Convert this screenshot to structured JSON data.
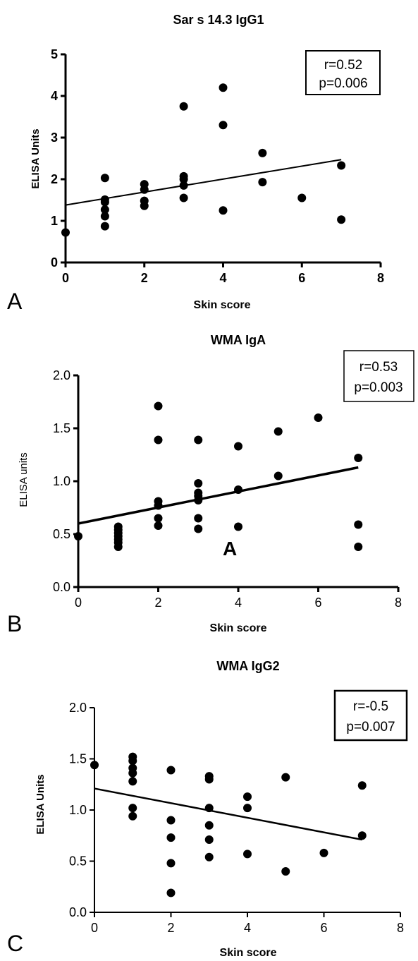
{
  "colors": {
    "marks": "#000000",
    "background": "#ffffff"
  },
  "chart_data": [
    {
      "type": "scatter",
      "panel_label": "A",
      "title": "Sar s 14.3 IgG1",
      "xlabel": "Skin score",
      "ylabel": "ELISA Units",
      "xlim": [
        0,
        8
      ],
      "ylim": [
        0,
        5
      ],
      "xticks": [
        "0",
        "2",
        "4",
        "6",
        "8"
      ],
      "yticks": [
        "0",
        "1",
        "2",
        "3",
        "4",
        "5"
      ],
      "stats": [
        "r=0.52",
        "p=0.006"
      ],
      "fit_line": {
        "x": [
          0,
          7
        ],
        "y": [
          1.38,
          2.47
        ]
      },
      "points": [
        {
          "x": 0,
          "y": 0.72
        },
        {
          "x": 1,
          "y": 2.03
        },
        {
          "x": 1,
          "y": 1.51
        },
        {
          "x": 1,
          "y": 1.45
        },
        {
          "x": 1,
          "y": 1.27
        },
        {
          "x": 1,
          "y": 1.11
        },
        {
          "x": 1,
          "y": 0.87
        },
        {
          "x": 2,
          "y": 1.88
        },
        {
          "x": 2,
          "y": 1.75
        },
        {
          "x": 2,
          "y": 1.48
        },
        {
          "x": 2,
          "y": 1.36
        },
        {
          "x": 3,
          "y": 3.75
        },
        {
          "x": 3,
          "y": 2.07
        },
        {
          "x": 3,
          "y": 2.0
        },
        {
          "x": 3,
          "y": 1.85
        },
        {
          "x": 3,
          "y": 1.55
        },
        {
          "x": 4,
          "y": 4.2
        },
        {
          "x": 4,
          "y": 3.3
        },
        {
          "x": 4,
          "y": 1.25
        },
        {
          "x": 5,
          "y": 2.63
        },
        {
          "x": 5,
          "y": 1.93
        },
        {
          "x": 6,
          "y": 1.55
        },
        {
          "x": 7,
          "y": 2.33
        },
        {
          "x": 7,
          "y": 1.03
        }
      ]
    },
    {
      "type": "scatter",
      "panel_label": "B",
      "title": "WMA IgA",
      "xlabel": "Skin score",
      "ylabel": "ELISA units",
      "xlim": [
        0,
        8
      ],
      "ylim": [
        0,
        2
      ],
      "xticks": [
        "0",
        "2",
        "4",
        "6",
        "8"
      ],
      "yticks": [
        "0.0",
        "0.5",
        "1.0",
        "1.5",
        "2.0"
      ],
      "stats": [
        "r=0.53",
        "p=0.003"
      ],
      "annotation": "A",
      "fit_line": {
        "x": [
          0,
          7
        ],
        "y": [
          0.6,
          1.13
        ]
      },
      "points": [
        {
          "x": 0,
          "y": 0.48
        },
        {
          "x": 1,
          "y": 0.57
        },
        {
          "x": 1,
          "y": 0.54
        },
        {
          "x": 1,
          "y": 0.51
        },
        {
          "x": 1,
          "y": 0.48
        },
        {
          "x": 1,
          "y": 0.45
        },
        {
          "x": 1,
          "y": 0.42
        },
        {
          "x": 1,
          "y": 0.38
        },
        {
          "x": 2,
          "y": 1.71
        },
        {
          "x": 2,
          "y": 1.39
        },
        {
          "x": 2,
          "y": 0.81
        },
        {
          "x": 2,
          "y": 0.77
        },
        {
          "x": 2,
          "y": 0.65
        },
        {
          "x": 2,
          "y": 0.58
        },
        {
          "x": 3,
          "y": 1.39
        },
        {
          "x": 3,
          "y": 0.98
        },
        {
          "x": 3,
          "y": 0.89
        },
        {
          "x": 3,
          "y": 0.86
        },
        {
          "x": 3,
          "y": 0.82
        },
        {
          "x": 3,
          "y": 0.65
        },
        {
          "x": 3,
          "y": 0.55
        },
        {
          "x": 4,
          "y": 1.33
        },
        {
          "x": 4,
          "y": 0.92
        },
        {
          "x": 4,
          "y": 0.57
        },
        {
          "x": 5,
          "y": 1.47
        },
        {
          "x": 5,
          "y": 1.05
        },
        {
          "x": 6,
          "y": 1.6
        },
        {
          "x": 7,
          "y": 1.22
        },
        {
          "x": 7,
          "y": 0.59
        },
        {
          "x": 7,
          "y": 0.38
        }
      ]
    },
    {
      "type": "scatter",
      "panel_label": "C",
      "title": "WMA IgG2",
      "xlabel": "Skin score",
      "ylabel": "ELISA Units",
      "xlim": [
        0,
        8
      ],
      "ylim": [
        0,
        2
      ],
      "xticks": [
        "0",
        "2",
        "4",
        "6",
        "8"
      ],
      "yticks": [
        "0.0",
        "0.5",
        "1.0",
        "1.5",
        "2.0"
      ],
      "stats": [
        "r=-0.5",
        "p=0.007"
      ],
      "fit_line": {
        "x": [
          0,
          7
        ],
        "y": [
          1.21,
          0.71
        ]
      },
      "points": [
        {
          "x": 0,
          "y": 1.44
        },
        {
          "x": 1,
          "y": 1.52
        },
        {
          "x": 1,
          "y": 1.48
        },
        {
          "x": 1,
          "y": 1.41
        },
        {
          "x": 1,
          "y": 1.36
        },
        {
          "x": 1,
          "y": 1.28
        },
        {
          "x": 1,
          "y": 1.02
        },
        {
          "x": 1,
          "y": 0.94
        },
        {
          "x": 2,
          "y": 1.39
        },
        {
          "x": 2,
          "y": 0.9
        },
        {
          "x": 2,
          "y": 0.73
        },
        {
          "x": 2,
          "y": 0.48
        },
        {
          "x": 2,
          "y": 0.19
        },
        {
          "x": 3,
          "y": 1.33
        },
        {
          "x": 3,
          "y": 1.3
        },
        {
          "x": 3,
          "y": 1.02
        },
        {
          "x": 3,
          "y": 0.85
        },
        {
          "x": 3,
          "y": 0.71
        },
        {
          "x": 3,
          "y": 0.54
        },
        {
          "x": 4,
          "y": 1.13
        },
        {
          "x": 4,
          "y": 1.02
        },
        {
          "x": 4,
          "y": 0.57
        },
        {
          "x": 5,
          "y": 1.32
        },
        {
          "x": 5,
          "y": 0.4
        },
        {
          "x": 6,
          "y": 0.58
        },
        {
          "x": 7,
          "y": 1.24
        },
        {
          "x": 7,
          "y": 0.75
        }
      ]
    }
  ]
}
